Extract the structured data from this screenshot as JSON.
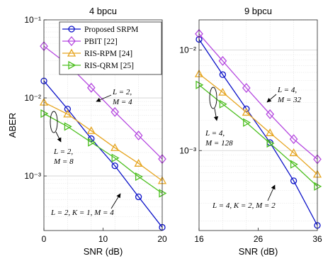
{
  "chart_data": [
    {
      "type": "line",
      "title": "4 bpcu",
      "xlabel": "SNR (dB)",
      "ylabel": "ABER",
      "yscale": "log",
      "xlim": [
        0,
        20
      ],
      "ylim": [
        0.0002,
        0.1
      ],
      "xticks": [
        0,
        10,
        20
      ],
      "xtick_labels": [
        "0",
        "10",
        "20"
      ],
      "yticks": [
        0.001,
        0.01,
        0.1
      ],
      "ytick_labels": [
        "10⁻³",
        "10⁻²",
        "10⁻¹"
      ],
      "grid": true,
      "legend": "top-right",
      "x": [
        0,
        4,
        8,
        12,
        16,
        20
      ],
      "series": [
        {
          "name": "Proposed SRPM",
          "color": "#0a10c8",
          "marker": "circle",
          "values": [
            0.0165,
            0.0072,
            0.003,
            0.00135,
            0.00054,
            0.00022
          ]
        },
        {
          "name": "PBIT [22]",
          "color": "#b548e0",
          "marker": "diamond",
          "values": [
            0.046,
            0.027,
            0.0135,
            0.0066,
            0.0033,
            0.00165
          ]
        },
        {
          "name": "RIS-RPM [24]",
          "color": "#e6a520",
          "marker": "triangle-up",
          "values": [
            0.0088,
            0.0062,
            0.0038,
            0.0023,
            0.00145,
            0.00087
          ]
        },
        {
          "name": "RIS-QRM [25]",
          "color": "#4cbf1f",
          "marker": "triangle-right",
          "values": [
            0.0063,
            0.0043,
            0.0027,
            0.0017,
            0.00098,
            0.0006
          ]
        }
      ],
      "annotations": [
        {
          "lines": [
            "L = 2,",
            "M = 4"
          ]
        },
        {
          "lines": [
            "L = 2,",
            "M = 8"
          ]
        },
        {
          "lines": [
            "L = 2, K = 1, M = 4"
          ]
        }
      ]
    },
    {
      "type": "line",
      "title": "9 bpcu",
      "xlabel": "SNR (dB)",
      "ylabel": "",
      "yscale": "log",
      "xlim": [
        16,
        36
      ],
      "ylim": [
        0.00016,
        0.02
      ],
      "xticks": [
        16,
        26,
        36
      ],
      "xtick_labels": [
        "16",
        "26",
        "36"
      ],
      "yticks": [
        0.001,
        0.01
      ],
      "ytick_labels": [
        "10⁻³",
        "10⁻²"
      ],
      "grid": true,
      "x": [
        16,
        20,
        24,
        28,
        32,
        36
      ],
      "series": [
        {
          "name": "Proposed SRPM",
          "color": "#0a10c8",
          "marker": "circle",
          "values": [
            0.0128,
            0.0057,
            0.0026,
            0.0012,
            0.0005,
            0.00018
          ]
        },
        {
          "name": "PBIT [22]",
          "color": "#b548e0",
          "marker": "diamond",
          "values": [
            0.0145,
            0.0078,
            0.0042,
            0.0023,
            0.0013,
            0.00082
          ]
        },
        {
          "name": "RIS-RPM [24]",
          "color": "#e6a520",
          "marker": "triangle-up",
          "values": [
            0.0058,
            0.0038,
            0.0024,
            0.0015,
            0.00095,
            0.00058
          ]
        },
        {
          "name": "RIS-QRM [25]",
          "color": "#4cbf1f",
          "marker": "triangle-right",
          "values": [
            0.0045,
            0.0029,
            0.0019,
            0.00118,
            0.00073,
            0.00044
          ]
        }
      ],
      "annotations": [
        {
          "lines": [
            "L = 4,",
            "M = 32"
          ]
        },
        {
          "lines": [
            "L = 4,",
            "M = 128"
          ]
        },
        {
          "lines": [
            "L = 4, K = 2, M = 2"
          ]
        }
      ]
    }
  ]
}
